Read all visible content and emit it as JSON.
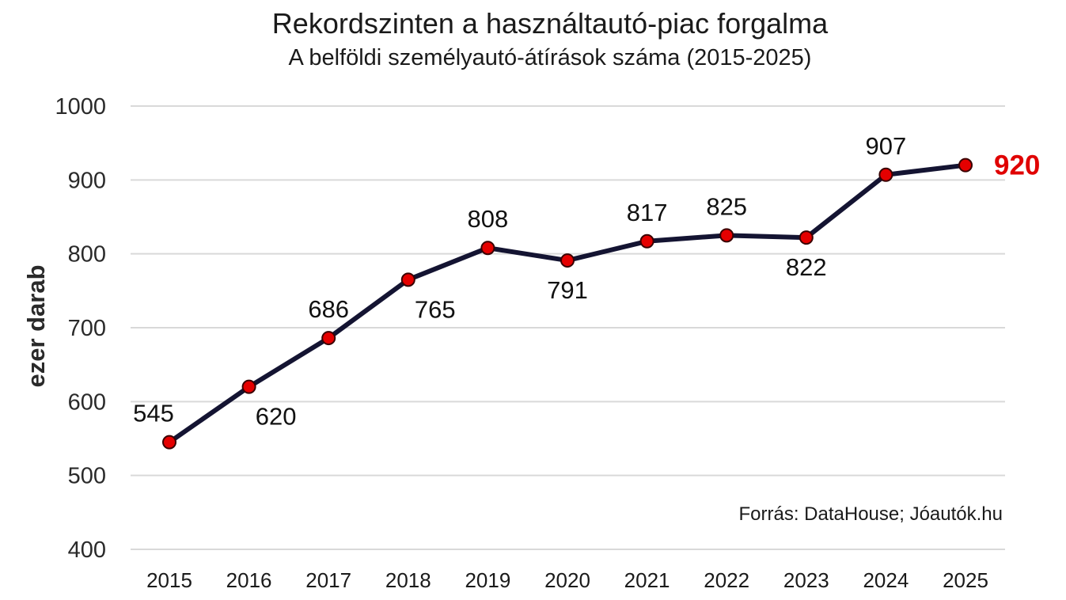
{
  "chart_data": {
    "type": "line",
    "title": "Rekordszinten a használtautó-piac forgalma",
    "subtitle": "A belföldi személyautó-átírások száma (2015-2025)",
    "ylabel": "ezer darab",
    "xlabel": "",
    "source": "Forrás: DataHouse; Jóautók.hu",
    "categories": [
      "2015",
      "2016",
      "2017",
      "2018",
      "2019",
      "2020",
      "2021",
      "2022",
      "2023",
      "2024",
      "2025"
    ],
    "values": [
      545,
      620,
      686,
      765,
      808,
      791,
      817,
      825,
      822,
      907,
      920
    ],
    "label_positions": [
      "above",
      "below",
      "above",
      "below",
      "above",
      "below",
      "above",
      "above",
      "below",
      "above",
      "right"
    ],
    "highlight_index": 10,
    "ylim": [
      400,
      1000
    ],
    "yticks": [
      400,
      500,
      600,
      700,
      800,
      900,
      1000
    ],
    "grid": true,
    "legend": "none",
    "colors": {
      "line": "#141432",
      "marker": "#e50000",
      "marker_edge": "#3a0000",
      "highlight_label": "#e00000",
      "grid": "#d9d9d9"
    }
  }
}
